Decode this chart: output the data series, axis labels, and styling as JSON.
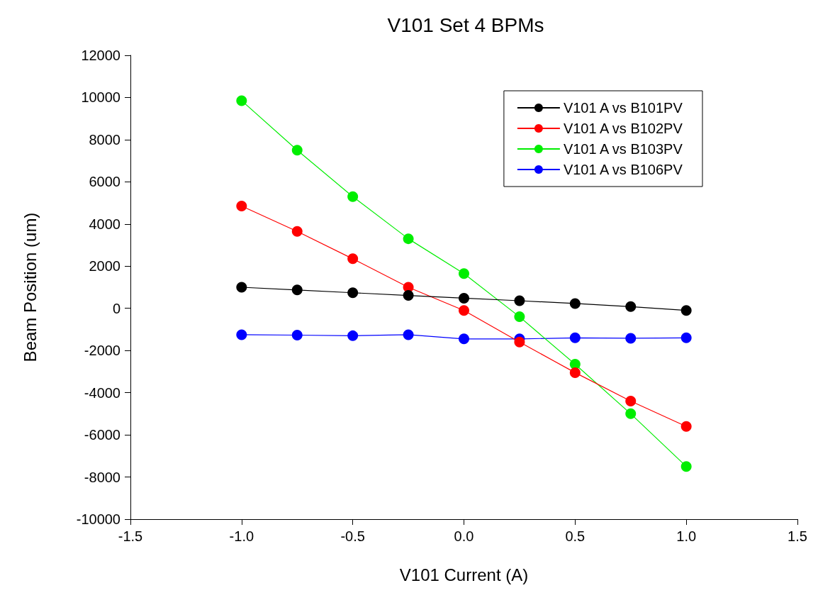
{
  "chart_data": {
    "type": "line",
    "title": "V101 Set 4 BPMs",
    "xlabel": "V101 Current (A)",
    "ylabel": "Beam Position (um)",
    "x": [
      -1.0,
      -0.75,
      -0.5,
      -0.25,
      0.0,
      0.25,
      0.5,
      0.75,
      1.0
    ],
    "series": [
      {
        "name": "V101 A vs B101PV",
        "color": "#000000",
        "values": [
          1000,
          870,
          740,
          610,
          480,
          360,
          230,
          80,
          -100
        ]
      },
      {
        "name": "V101 A vs B102PV",
        "color": "#ff0000",
        "values": [
          4850,
          3650,
          2350,
          1000,
          -100,
          -1600,
          -3050,
          -4400,
          -5600
        ]
      },
      {
        "name": "V101 A vs B103PV",
        "color": "#00ee00",
        "values": [
          9850,
          7500,
          5300,
          3300,
          1650,
          -400,
          -2650,
          -5000,
          -7500
        ]
      },
      {
        "name": "V101 A vs B106PV",
        "color": "#0000ff",
        "values": [
          -1250,
          -1270,
          -1300,
          -1250,
          -1450,
          -1450,
          -1400,
          -1420,
          -1400
        ]
      }
    ],
    "xlim": [
      -1.5,
      1.5
    ],
    "xticks": [
      {
        "value": -1.5,
        "label": "-1.5"
      },
      {
        "value": -1.0,
        "label": "-1.0"
      },
      {
        "value": -0.5,
        "label": "-0.5"
      },
      {
        "value": 0.0,
        "label": "0.0"
      },
      {
        "value": 0.5,
        "label": "0.5"
      },
      {
        "value": 1.0,
        "label": "1.0"
      },
      {
        "value": 1.5,
        "label": "1.5"
      }
    ],
    "ylim": [
      -10000,
      12000
    ],
    "yticks": [
      -10000,
      -8000,
      -6000,
      -4000,
      -2000,
      0,
      2000,
      4000,
      6000,
      8000,
      10000,
      12000
    ],
    "grid": false,
    "legend": "top right",
    "marker": "circle",
    "line_style": "solid"
  }
}
